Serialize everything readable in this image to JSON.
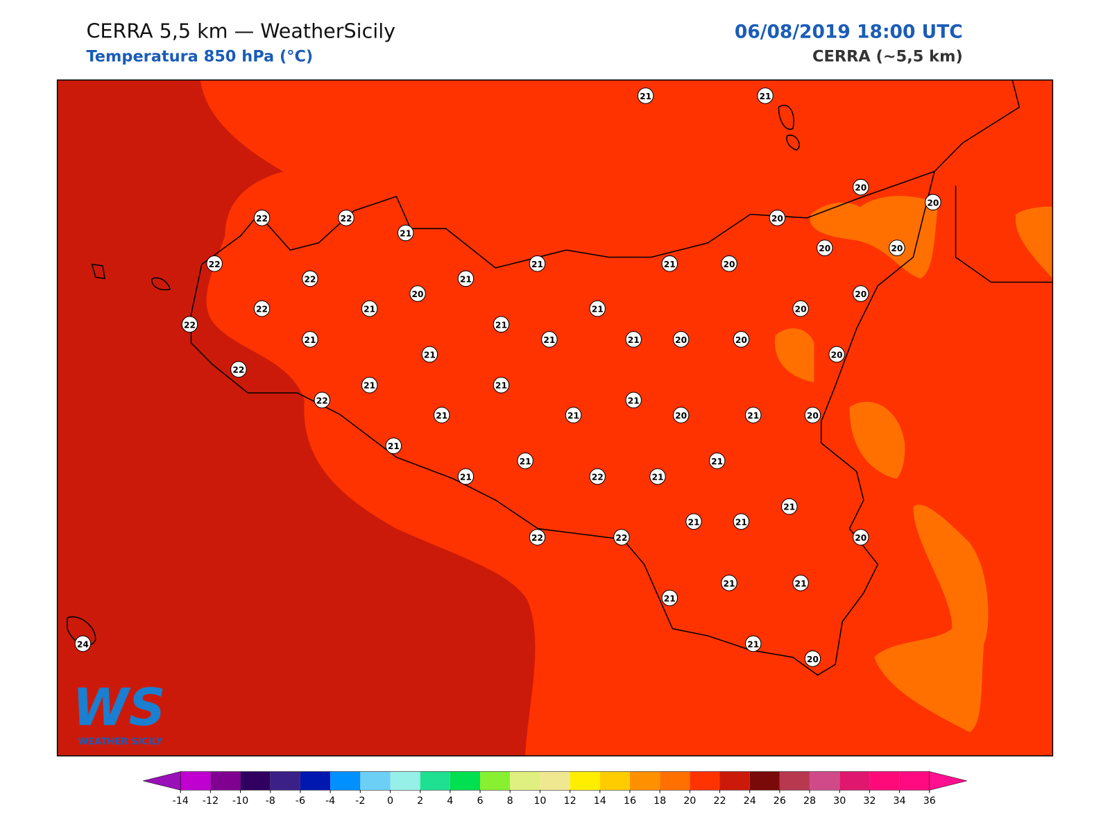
{
  "header": {
    "title": "CERRA 5,5 km — WeatherSicily",
    "subtitle": "Temperatura 850 hPa (°C)",
    "datetime": "06/08/2019 18:00 UTC",
    "model": "CERRA (~5,5 km)"
  },
  "map": {
    "stations": [
      21,
      21,
      20,
      20,
      22,
      22,
      21,
      20,
      20,
      20,
      22,
      21,
      21,
      20,
      22,
      21,
      20,
      20,
      22,
      21,
      21,
      20,
      22,
      21,
      21,
      21,
      21,
      20,
      20,
      21,
      20,
      22,
      21,
      21,
      22,
      21,
      21,
      21,
      20,
      21,
      20,
      21,
      21,
      21,
      21,
      22,
      21,
      21,
      21,
      21,
      22,
      22,
      20,
      21,
      21,
      21,
      21,
      20,
      24
    ]
  },
  "logo": {
    "mark": "WS",
    "name": "WEATHER SICILY"
  },
  "colorbar": {
    "ticks": [
      -14,
      -12,
      -10,
      -8,
      -6,
      -4,
      -2,
      0,
      2,
      4,
      6,
      8,
      10,
      12,
      14,
      16,
      18,
      20,
      22,
      24,
      26,
      28,
      30,
      32,
      34,
      36
    ],
    "under": "#9a10b8",
    "over": "#ff1090",
    "colors": [
      "#c000d0",
      "#800090",
      "#300060",
      "#3b2187",
      "#0018b0",
      "#0090ff",
      "#6ccff6",
      "#96f0e8",
      "#1ee090",
      "#00e050",
      "#88f030",
      "#e0f080",
      "#f0e890",
      "#ffee00",
      "#ffcc00",
      "#ff9000",
      "#ff7000",
      "#ff3300",
      "#cc1a0a",
      "#7a0a0a",
      "#b83850",
      "#d04a8a",
      "#e0176e",
      "#ff0a78",
      "#ff0a80"
    ]
  }
}
